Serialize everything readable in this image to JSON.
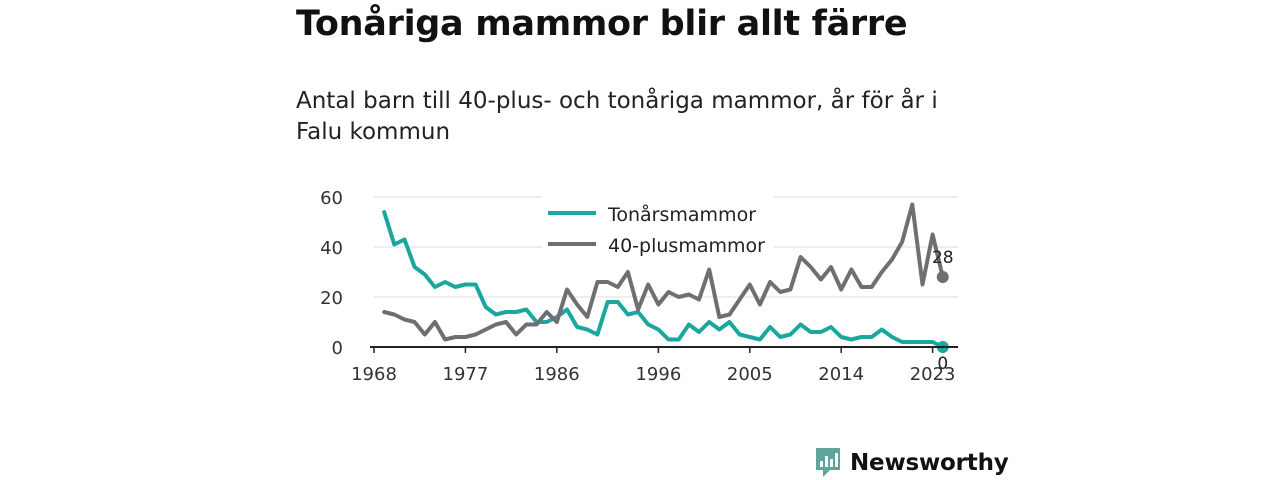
{
  "title": "Tonåriga mammor blir allt färre",
  "subtitle": "Antal barn till 40-plus- och tonåriga mammor, år för år i Falu kommun",
  "brand": {
    "name": "Newsworthy",
    "color": "#5fa59b"
  },
  "chart_data": {
    "type": "line",
    "x": [
      1969,
      1970,
      1971,
      1972,
      1973,
      1974,
      1975,
      1976,
      1977,
      1978,
      1979,
      1980,
      1981,
      1982,
      1983,
      1984,
      1985,
      1986,
      1987,
      1988,
      1989,
      1990,
      1991,
      1992,
      1993,
      1994,
      1995,
      1996,
      1997,
      1998,
      1999,
      2000,
      2001,
      2002,
      2003,
      2004,
      2005,
      2006,
      2007,
      2008,
      2009,
      2010,
      2011,
      2012,
      2013,
      2014,
      2015,
      2016,
      2017,
      2018,
      2019,
      2020,
      2021,
      2022,
      2023,
      2024
    ],
    "series": [
      {
        "name": "Tonårsmammor",
        "color": "#1aa89e",
        "values": [
          54,
          41,
          43,
          32,
          29,
          24,
          26,
          24,
          25,
          25,
          16,
          13,
          14,
          14,
          15,
          10,
          10,
          12,
          15,
          8,
          7,
          5,
          18,
          18,
          13,
          14,
          9,
          7,
          3,
          3,
          9,
          6,
          10,
          7,
          10,
          5,
          4,
          3,
          8,
          4,
          5,
          9,
          6,
          6,
          8,
          4,
          3,
          4,
          4,
          7,
          4,
          2,
          2,
          2,
          2,
          0
        ]
      },
      {
        "name": "40-plusmammor",
        "color": "#6f6f73",
        "values": [
          14,
          13,
          11,
          10,
          5,
          10,
          3,
          4,
          4,
          5,
          7,
          9,
          10,
          5,
          9,
          9,
          14,
          10,
          23,
          17,
          12,
          26,
          26,
          24,
          30,
          15,
          25,
          17,
          22,
          20,
          21,
          19,
          31,
          12,
          13,
          19,
          25,
          17,
          26,
          22,
          23,
          36,
          32,
          27,
          32,
          23,
          31,
          24,
          24,
          30,
          35,
          42,
          57,
          25,
          45,
          28
        ]
      }
    ],
    "xticks": [
      "1968",
      "1977",
      "1986",
      "1996",
      "2005",
      "2014",
      "2023"
    ],
    "yticks": [
      "0",
      "20",
      "40",
      "60"
    ],
    "ylim": [
      0,
      60
    ],
    "end_labels": [
      "0",
      "28"
    ],
    "legend": "top-center",
    "grid": true
  }
}
